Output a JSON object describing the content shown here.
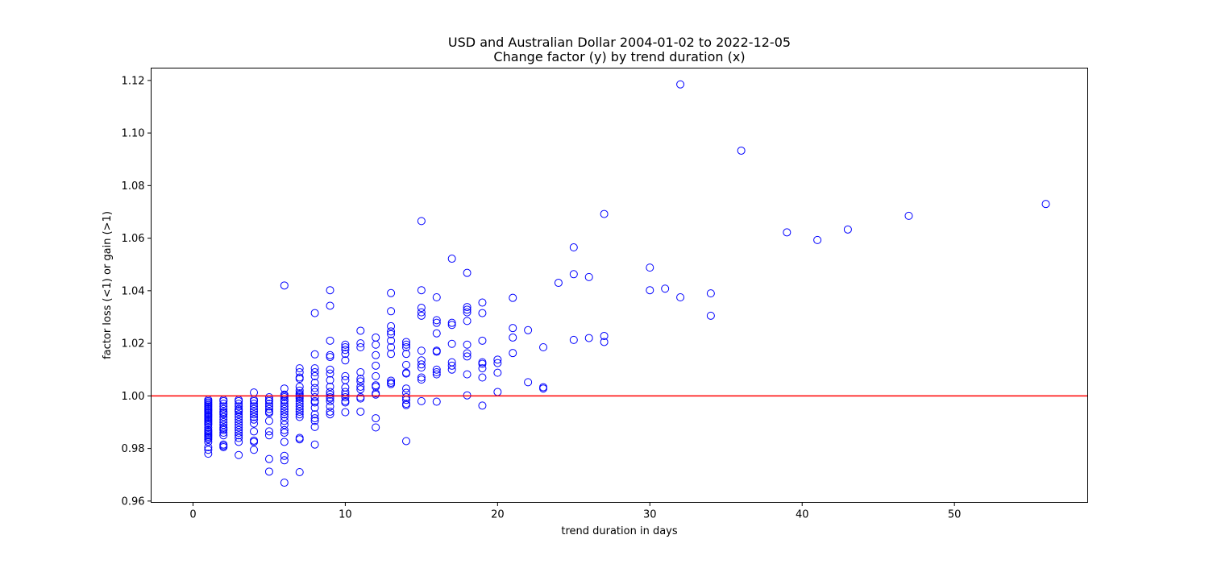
{
  "chart_data": {
    "type": "scatter",
    "title": "USD and Australian Dollar 2004-01-02 to 2022-12-05",
    "subtitle": "Change factor (y) by trend duration (x)",
    "xlabel": "trend duration in days",
    "ylabel": "factor loss (<1) or gain (>1)",
    "xlim": [
      -2.75,
      58.75
    ],
    "ylim": [
      0.9595,
      1.1247
    ],
    "xticks": [
      0,
      10,
      20,
      30,
      40,
      50
    ],
    "xtick_labels": [
      "0",
      "10",
      "20",
      "30",
      "40",
      "50"
    ],
    "yticks": [
      0.96,
      0.98,
      1.0,
      1.02,
      1.04,
      1.06,
      1.08,
      1.1,
      1.12
    ],
    "ytick_labels": [
      "0.96",
      "0.98",
      "1.00",
      "1.02",
      "1.04",
      "1.06",
      "1.08",
      "1.10",
      "1.12"
    ],
    "grid": false,
    "reference_line": {
      "y": 1.0,
      "color": "#ff0000"
    },
    "marker_color": "#0000ff",
    "points": [
      [
        1,
        0.9985
      ],
      [
        1,
        0.998
      ],
      [
        1,
        0.9975
      ],
      [
        1,
        0.997
      ],
      [
        1,
        0.9965
      ],
      [
        1,
        0.996
      ],
      [
        1,
        0.9955
      ],
      [
        1,
        0.995
      ],
      [
        1,
        0.9945
      ],
      [
        1,
        0.994
      ],
      [
        1,
        0.9935
      ],
      [
        1,
        0.993
      ],
      [
        1,
        0.9925
      ],
      [
        1,
        0.992
      ],
      [
        1,
        0.9915
      ],
      [
        1,
        0.991
      ],
      [
        1,
        0.9905
      ],
      [
        1,
        0.99
      ],
      [
        1,
        0.9895
      ],
      [
        1,
        0.989
      ],
      [
        1,
        0.988
      ],
      [
        1,
        0.987
      ],
      [
        1,
        0.9865
      ],
      [
        1,
        0.986
      ],
      [
        1,
        0.9855
      ],
      [
        1,
        0.985
      ],
      [
        1,
        0.9845
      ],
      [
        1,
        0.984
      ],
      [
        1,
        0.9835
      ],
      [
        1,
        0.9825
      ],
      [
        1,
        0.9805
      ],
      [
        1,
        0.9795
      ],
      [
        1,
        0.978
      ],
      [
        2,
        0.9985
      ],
      [
        2,
        0.998
      ],
      [
        2,
        0.997
      ],
      [
        2,
        0.996
      ],
      [
        2,
        0.995
      ],
      [
        2,
        0.994
      ],
      [
        2,
        0.9935
      ],
      [
        2,
        0.993
      ],
      [
        2,
        0.992
      ],
      [
        2,
        0.991
      ],
      [
        2,
        0.99
      ],
      [
        2,
        0.989
      ],
      [
        2,
        0.988
      ],
      [
        2,
        0.9875
      ],
      [
        2,
        0.987
      ],
      [
        2,
        0.986
      ],
      [
        2,
        0.985
      ],
      [
        2,
        0.9815
      ],
      [
        2,
        0.981
      ],
      [
        2,
        0.9805
      ],
      [
        3,
        0.9985
      ],
      [
        3,
        0.998
      ],
      [
        3,
        0.997
      ],
      [
        3,
        0.996
      ],
      [
        3,
        0.995
      ],
      [
        3,
        0.9945
      ],
      [
        3,
        0.994
      ],
      [
        3,
        0.993
      ],
      [
        3,
        0.992
      ],
      [
        3,
        0.991
      ],
      [
        3,
        0.99
      ],
      [
        3,
        0.989
      ],
      [
        3,
        0.988
      ],
      [
        3,
        0.987
      ],
      [
        3,
        0.986
      ],
      [
        3,
        0.985
      ],
      [
        3,
        0.984
      ],
      [
        3,
        0.9825
      ],
      [
        3,
        0.9775
      ],
      [
        4,
        1.0013
      ],
      [
        4,
        0.9985
      ],
      [
        4,
        0.998
      ],
      [
        4,
        0.997
      ],
      [
        4,
        0.996
      ],
      [
        4,
        0.995
      ],
      [
        4,
        0.994
      ],
      [
        4,
        0.993
      ],
      [
        4,
        0.992
      ],
      [
        4,
        0.991
      ],
      [
        4,
        0.9895
      ],
      [
        4,
        0.9865
      ],
      [
        4,
        0.983
      ],
      [
        4,
        0.9825
      ],
      [
        4,
        0.9795
      ],
      [
        5,
        0.9995
      ],
      [
        5,
        0.9985
      ],
      [
        5,
        0.998
      ],
      [
        5,
        0.997
      ],
      [
        5,
        0.996
      ],
      [
        5,
        0.995
      ],
      [
        5,
        0.994
      ],
      [
        5,
        0.9935
      ],
      [
        5,
        0.9905
      ],
      [
        5,
        0.9865
      ],
      [
        5,
        0.985
      ],
      [
        5,
        0.976
      ],
      [
        5,
        0.9712
      ],
      [
        6,
        1.042
      ],
      [
        6,
        1.0028
      ],
      [
        6,
        1.0005
      ],
      [
        6,
        1.0
      ],
      [
        6,
        0.9995
      ],
      [
        6,
        0.9985
      ],
      [
        6,
        0.998
      ],
      [
        6,
        0.997
      ],
      [
        6,
        0.996
      ],
      [
        6,
        0.995
      ],
      [
        6,
        0.994
      ],
      [
        6,
        0.993
      ],
      [
        6,
        0.992
      ],
      [
        6,
        0.9905
      ],
      [
        6,
        0.989
      ],
      [
        6,
        0.987
      ],
      [
        6,
        0.986
      ],
      [
        6,
        0.9825
      ],
      [
        6,
        0.9772
      ],
      [
        6,
        0.9755
      ],
      [
        6,
        0.967
      ],
      [
        7,
        1.0105
      ],
      [
        7,
        1.009
      ],
      [
        7,
        1.007
      ],
      [
        7,
        1.0065
      ],
      [
        7,
        1.0035
      ],
      [
        7,
        1.002
      ],
      [
        7,
        1.001
      ],
      [
        7,
        1.0005
      ],
      [
        7,
        1.0
      ],
      [
        7,
        0.9995
      ],
      [
        7,
        0.999
      ],
      [
        7,
        0.998
      ],
      [
        7,
        0.997
      ],
      [
        7,
        0.996
      ],
      [
        7,
        0.995
      ],
      [
        7,
        0.994
      ],
      [
        7,
        0.993
      ],
      [
        7,
        0.992
      ],
      [
        7,
        0.984
      ],
      [
        7,
        0.9835
      ],
      [
        7,
        0.971
      ],
      [
        8,
        1.0315
      ],
      [
        8,
        1.0158
      ],
      [
        8,
        1.0105
      ],
      [
        8,
        1.009
      ],
      [
        8,
        1.0075
      ],
      [
        8,
        1.005
      ],
      [
        8,
        1.003
      ],
      [
        8,
        1.0015
      ],
      [
        8,
        0.9995
      ],
      [
        8,
        0.998
      ],
      [
        8,
        0.9975
      ],
      [
        8,
        0.9955
      ],
      [
        8,
        0.993
      ],
      [
        8,
        0.9915
      ],
      [
        8,
        0.9905
      ],
      [
        8,
        0.9882
      ],
      [
        8,
        0.9815
      ],
      [
        9,
        1.0402
      ],
      [
        9,
        1.0343
      ],
      [
        9,
        1.021
      ],
      [
        9,
        1.0155
      ],
      [
        9,
        1.0148
      ],
      [
        9,
        1.01
      ],
      [
        9,
        1.0085
      ],
      [
        9,
        1.006
      ],
      [
        9,
        1.0035
      ],
      [
        9,
        1.0015
      ],
      [
        9,
        1.0005
      ],
      [
        9,
        0.9995
      ],
      [
        9,
        0.999
      ],
      [
        9,
        0.998
      ],
      [
        9,
        0.996
      ],
      [
        9,
        0.994
      ],
      [
        9,
        0.993
      ],
      [
        10,
        1.0195
      ],
      [
        10,
        1.0185
      ],
      [
        10,
        1.0175
      ],
      [
        10,
        1.016
      ],
      [
        10,
        1.0135
      ],
      [
        10,
        1.0075
      ],
      [
        10,
        1.006
      ],
      [
        10,
        1.0032
      ],
      [
        10,
        1.0015
      ],
      [
        10,
        1.0005
      ],
      [
        10,
        0.9995
      ],
      [
        10,
        0.998
      ],
      [
        10,
        0.9975
      ],
      [
        10,
        0.9938
      ],
      [
        11,
        1.0248
      ],
      [
        11,
        1.02
      ],
      [
        11,
        1.0185
      ],
      [
        11,
        1.009
      ],
      [
        11,
        1.0065
      ],
      [
        11,
        1.0055
      ],
      [
        11,
        1.0035
      ],
      [
        11,
        1.0025
      ],
      [
        11,
        0.9995
      ],
      [
        11,
        0.999
      ],
      [
        11,
        0.994
      ],
      [
        12,
        1.0222
      ],
      [
        12,
        1.0195
      ],
      [
        12,
        1.0155
      ],
      [
        12,
        1.0115
      ],
      [
        12,
        1.0075
      ],
      [
        12,
        1.004
      ],
      [
        12,
        1.0035
      ],
      [
        12,
        1.001
      ],
      [
        12,
        1.0005
      ],
      [
        12,
        0.9915
      ],
      [
        12,
        0.988
      ],
      [
        13,
        1.0391
      ],
      [
        13,
        1.0322
      ],
      [
        13,
        1.0265
      ],
      [
        13,
        1.0245
      ],
      [
        13,
        1.0235
      ],
      [
        13,
        1.021
      ],
      [
        13,
        1.0185
      ],
      [
        13,
        1.016
      ],
      [
        13,
        1.0058
      ],
      [
        13,
        1.005
      ],
      [
        13,
        1.0045
      ],
      [
        14,
        1.0205
      ],
      [
        14,
        1.0195
      ],
      [
        14,
        1.0185
      ],
      [
        14,
        1.016
      ],
      [
        14,
        1.0118
      ],
      [
        14,
        1.0085
      ],
      [
        14,
        1.0088
      ],
      [
        14,
        1.0028
      ],
      [
        14,
        1.0012
      ],
      [
        14,
        0.9995
      ],
      [
        14,
        0.9985
      ],
      [
        14,
        0.997
      ],
      [
        14,
        0.9965
      ],
      [
        14,
        0.9828
      ],
      [
        15,
        1.0665
      ],
      [
        15,
        1.0402
      ],
      [
        15,
        1.0335
      ],
      [
        15,
        1.0318
      ],
      [
        15,
        1.0305
      ],
      [
        15,
        1.0172
      ],
      [
        15,
        1.0135
      ],
      [
        15,
        1.012
      ],
      [
        15,
        1.0108
      ],
      [
        15,
        1.007
      ],
      [
        15,
        1.0062
      ],
      [
        15,
        0.998
      ],
      [
        16,
        1.0375
      ],
      [
        16,
        1.0288
      ],
      [
        16,
        1.0278
      ],
      [
        16,
        1.0238
      ],
      [
        16,
        1.0172
      ],
      [
        16,
        1.0168
      ],
      [
        16,
        1.01
      ],
      [
        16,
        1.009
      ],
      [
        16,
        1.0082
      ],
      [
        16,
        0.9978
      ],
      [
        17,
        1.0522
      ],
      [
        17,
        1.0278
      ],
      [
        17,
        1.027
      ],
      [
        17,
        1.0198
      ],
      [
        17,
        1.0128
      ],
      [
        17,
        1.0115
      ],
      [
        17,
        1.01
      ],
      [
        18,
        1.0468
      ],
      [
        18,
        1.0338
      ],
      [
        18,
        1.0328
      ],
      [
        18,
        1.0318
      ],
      [
        18,
        1.0285
      ],
      [
        18,
        1.0195
      ],
      [
        18,
        1.0162
      ],
      [
        18,
        1.015
      ],
      [
        18,
        1.0082
      ],
      [
        18,
        1.0002
      ],
      [
        19,
        1.0355
      ],
      [
        19,
        1.0315
      ],
      [
        19,
        1.021
      ],
      [
        19,
        1.0128
      ],
      [
        19,
        1.0122
      ],
      [
        19,
        1.0105
      ],
      [
        19,
        1.007
      ],
      [
        19,
        0.9963
      ],
      [
        20,
        1.0138
      ],
      [
        20,
        1.0125
      ],
      [
        20,
        1.0088
      ],
      [
        20,
        1.0015
      ],
      [
        21,
        1.0373
      ],
      [
        21,
        1.0258
      ],
      [
        21,
        1.0222
      ],
      [
        21,
        1.0163
      ],
      [
        22,
        1.025
      ],
      [
        22,
        1.0052
      ],
      [
        23,
        1.0185
      ],
      [
        23,
        1.0033
      ],
      [
        23,
        1.0028
      ],
      [
        24,
        1.043
      ],
      [
        25,
        1.0565
      ],
      [
        25,
        1.0463
      ],
      [
        25,
        1.0213
      ],
      [
        26,
        1.0452
      ],
      [
        26,
        1.022
      ],
      [
        27,
        1.0692
      ],
      [
        27,
        1.0228
      ],
      [
        27,
        1.0205
      ],
      [
        30,
        1.0488
      ],
      [
        30,
        1.0402
      ],
      [
        31,
        1.0408
      ],
      [
        32,
        1.1185
      ],
      [
        32,
        1.0375
      ],
      [
        34,
        1.039
      ],
      [
        34,
        1.0305
      ],
      [
        36,
        1.0933
      ],
      [
        39,
        1.0622
      ],
      [
        41,
        1.0593
      ],
      [
        43,
        1.0633
      ],
      [
        47,
        1.0685
      ],
      [
        56,
        1.073
      ]
    ]
  }
}
